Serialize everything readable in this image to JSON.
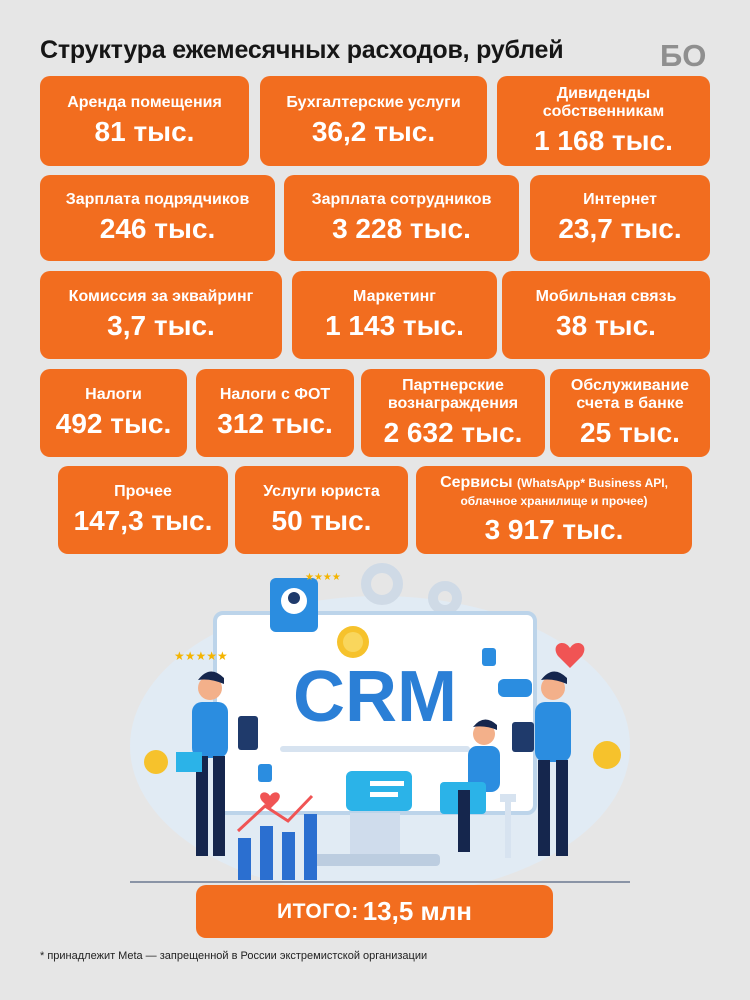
{
  "header": {
    "title": "Структура ежемесячных расходов, рублей",
    "logo_text": "БО"
  },
  "colors": {
    "accent": "#f26d1f",
    "background": "#e6e6e6",
    "illustration_blue": "#2b7fd6"
  },
  "chart_data": {
    "type": "table",
    "title": "Структура ежемесячных расходов, рублей",
    "unit": "рублей",
    "items": [
      {
        "label": "Аренда помещения",
        "value": 81000,
        "value_text": "81 тыс."
      },
      {
        "label": "Бухгалтерские услуги",
        "value": 36200,
        "value_text": "36,2 тыс."
      },
      {
        "label": "Дивиденды собственникам",
        "value": 1168000,
        "value_text": "1 168 тыс."
      },
      {
        "label": "Зарплата подрядчиков",
        "value": 246000,
        "value_text": "246 тыс."
      },
      {
        "label": "Зарплата сотрудников",
        "value": 3228000,
        "value_text": "3 228 тыс."
      },
      {
        "label": "Интернет",
        "value": 23700,
        "value_text": "23,7 тыс."
      },
      {
        "label": "Комиссия за эквайринг",
        "value": 3700,
        "value_text": "3,7 тыс."
      },
      {
        "label": "Маркетинг",
        "value": 1143000,
        "value_text": "1 143 тыс."
      },
      {
        "label": "Мобильная связь",
        "value": 38000,
        "value_text": "38 тыс."
      },
      {
        "label": "Налоги",
        "value": 492000,
        "value_text": "492 тыс."
      },
      {
        "label": "Налоги с ФОТ",
        "value": 312000,
        "value_text": "312 тыс."
      },
      {
        "label": "Партнерские вознаграждения",
        "value": 2632000,
        "value_text": "2 632 тыс."
      },
      {
        "label": "Обслуживание счета в банке",
        "value": 25000,
        "value_text": "25 тыс."
      },
      {
        "label": "Прочее",
        "value": 147300,
        "value_text": "147,3 тыс."
      },
      {
        "label": "Услуги юриста",
        "value": 50000,
        "value_text": "50 тыс."
      },
      {
        "label": "Сервисы",
        "label_note": "(WhatsApp* Business API, облачное хранилище и прочее)",
        "value": 3917000,
        "value_text": "3 917 тыс."
      }
    ],
    "total": {
      "label": "ИТОГО:",
      "value_text": "13,5 млн"
    }
  },
  "illustration": {
    "screen_text": "CRM"
  },
  "footnote": "* принадлежит Meta — запрещенной в России экстремистской организации"
}
